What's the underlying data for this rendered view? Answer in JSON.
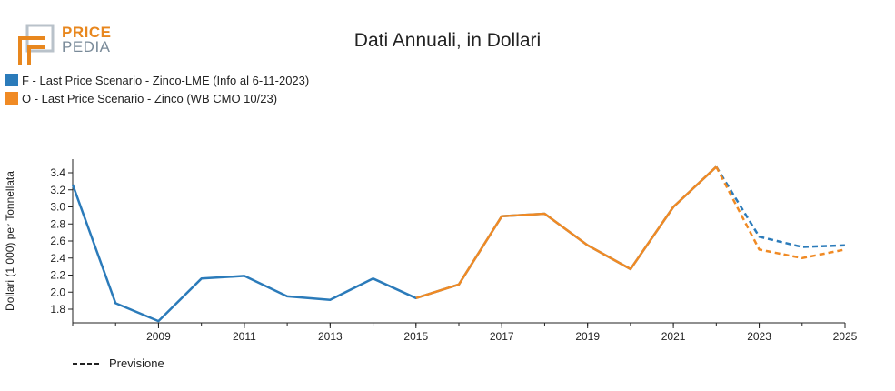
{
  "logo": {
    "line1": "PRICE",
    "line2": "PEDIA"
  },
  "chart_data": {
    "type": "line",
    "title": "Dati Annuali, in Dollari",
    "xlabel": "",
    "ylabel": "Dollari (1 000) per Tonnellata",
    "xlim": [
      2007,
      2025
    ],
    "ylim": [
      1.64,
      3.56
    ],
    "x_ticks": [
      2009,
      2011,
      2013,
      2015,
      2017,
      2019,
      2021,
      2023,
      2025
    ],
    "y_ticks": [
      1.8,
      2.0,
      2.2,
      2.4,
      2.6,
      2.8,
      3.0,
      3.2,
      3.4
    ],
    "legend_position": "top-left",
    "series": [
      {
        "name": "F - Last Price Scenario - Zinco-LME (Info al 6-11-2023)",
        "color": "#2b7bba",
        "x": [
          2007,
          2008,
          2009,
          2010,
          2011,
          2012,
          2013,
          2014,
          2015,
          2016,
          2017,
          2018,
          2019,
          2020,
          2021,
          2022,
          2023,
          2024,
          2025
        ],
        "values": [
          3.26,
          1.87,
          1.66,
          2.16,
          2.19,
          1.95,
          1.91,
          2.16,
          1.93,
          2.09,
          2.89,
          2.92,
          2.55,
          2.27,
          3.0,
          3.47,
          2.65,
          2.53,
          2.55
        ],
        "forecast_from": 2022
      },
      {
        "name": "O - Last Price Scenario - Zinco (WB CMO 10/23)",
        "color": "#f08a24",
        "x": [
          2015,
          2016,
          2017,
          2018,
          2019,
          2020,
          2021,
          2022,
          2023,
          2024,
          2025
        ],
        "values": [
          1.93,
          2.09,
          2.89,
          2.92,
          2.55,
          2.27,
          3.0,
          3.47,
          2.5,
          2.4,
          2.5
        ],
        "forecast_from": 2022
      }
    ],
    "forecast_legend": "Previsione"
  }
}
